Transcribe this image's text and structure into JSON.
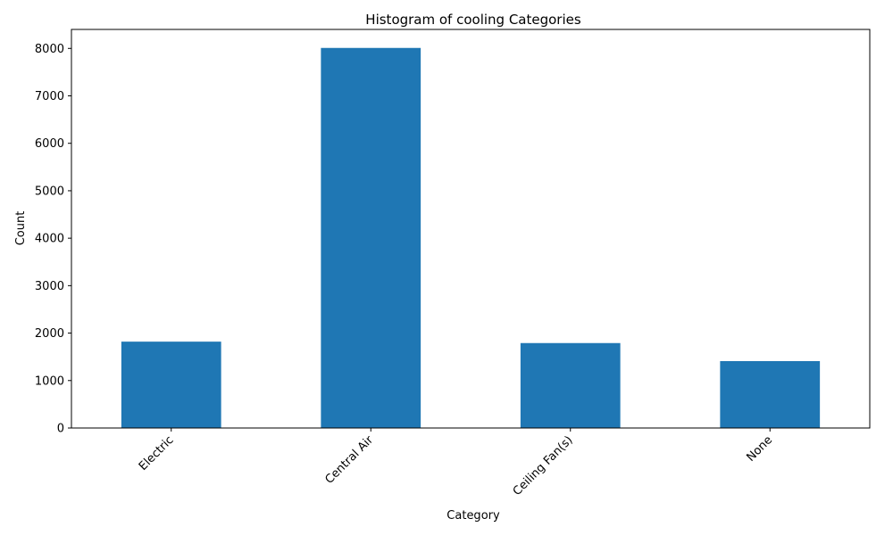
{
  "chart_data": {
    "type": "bar",
    "title": "Histogram of cooling Categories",
    "xlabel": "Category",
    "ylabel": "Count",
    "categories": [
      "Electric",
      "Central Air",
      "Ceiling Fan(s)",
      "None"
    ],
    "values": [
      1820,
      8010,
      1790,
      1410
    ],
    "ylim": [
      0,
      8400
    ],
    "yticks": [
      0,
      1000,
      2000,
      3000,
      4000,
      5000,
      6000,
      7000,
      8000
    ],
    "bar_color": "#1f77b4",
    "grid": false,
    "legend": "none"
  }
}
